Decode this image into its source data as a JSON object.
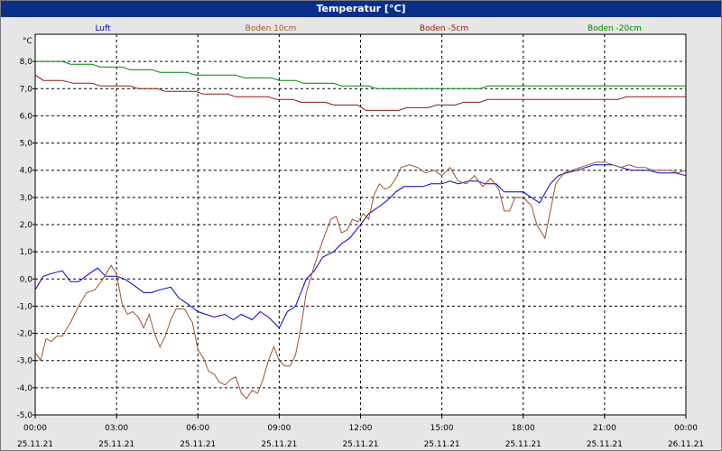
{
  "window": {
    "title": "Temperatur [°C]"
  },
  "chart_data": {
    "type": "line",
    "title": "Temperatur [°C]",
    "ylabel": "°C",
    "ylim": [
      -5,
      9
    ],
    "ytick_values": [
      -5,
      -4,
      -3,
      -2,
      -1,
      0,
      1,
      2,
      3,
      4,
      5,
      6,
      7,
      8
    ],
    "ytick_labels": [
      "-5,0",
      "-4,0",
      "-3,0",
      "-2,0",
      "-1,0",
      "0,0",
      "1,0",
      "2,0",
      "3,0",
      "4,0",
      "5,0",
      "6,0",
      "7,0",
      "8,0"
    ],
    "xlim": [
      0,
      24
    ],
    "xtick_hours": [
      0,
      3,
      6,
      9,
      12,
      15,
      18,
      21,
      24
    ],
    "xtick_times": [
      "00:00",
      "03:00",
      "06:00",
      "09:00",
      "12:00",
      "15:00",
      "18:00",
      "21:00",
      "00:00"
    ],
    "xtick_dates": [
      "25.11.21",
      "25.11.21",
      "25.11.21",
      "25.11.21",
      "25.11.21",
      "25.11.21",
      "25.11.21",
      "25.11.21",
      "26.11.21"
    ],
    "grid": true,
    "legend_position": "top",
    "series": [
      {
        "name": "Luft",
        "color": "#0000cc",
        "points": [
          [
            0,
            -0.4
          ],
          [
            0.3,
            0.1
          ],
          [
            0.6,
            0.2
          ],
          [
            1.0,
            0.3
          ],
          [
            1.3,
            -0.1
          ],
          [
            1.6,
            -0.1
          ],
          [
            2.0,
            0.2
          ],
          [
            2.3,
            0.4
          ],
          [
            2.6,
            0.1
          ],
          [
            3.0,
            0.1
          ],
          [
            3.3,
            0.0
          ],
          [
            3.6,
            -0.2
          ],
          [
            4.0,
            -0.5
          ],
          [
            4.3,
            -0.5
          ],
          [
            4.6,
            -0.4
          ],
          [
            5.0,
            -0.3
          ],
          [
            5.3,
            -0.7
          ],
          [
            5.6,
            -0.9
          ],
          [
            6.0,
            -1.2
          ],
          [
            6.3,
            -1.3
          ],
          [
            6.6,
            -1.4
          ],
          [
            7.0,
            -1.3
          ],
          [
            7.3,
            -1.5
          ],
          [
            7.6,
            -1.3
          ],
          [
            8.0,
            -1.5
          ],
          [
            8.3,
            -1.2
          ],
          [
            8.6,
            -1.4
          ],
          [
            9.0,
            -1.8
          ],
          [
            9.3,
            -1.2
          ],
          [
            9.6,
            -1.0
          ],
          [
            10.0,
            0.0
          ],
          [
            10.3,
            0.3
          ],
          [
            10.6,
            0.8
          ],
          [
            11.0,
            1.0
          ],
          [
            11.3,
            1.3
          ],
          [
            11.6,
            1.5
          ],
          [
            12.0,
            2.0
          ],
          [
            12.3,
            2.4
          ],
          [
            12.6,
            2.6
          ],
          [
            13.0,
            2.9
          ],
          [
            13.3,
            3.2
          ],
          [
            13.6,
            3.4
          ],
          [
            14.0,
            3.4
          ],
          [
            14.3,
            3.4
          ],
          [
            14.6,
            3.5
          ],
          [
            15.0,
            3.5
          ],
          [
            15.3,
            3.6
          ],
          [
            15.6,
            3.5
          ],
          [
            16.0,
            3.6
          ],
          [
            16.3,
            3.6
          ],
          [
            16.6,
            3.5
          ],
          [
            17.0,
            3.5
          ],
          [
            17.3,
            3.2
          ],
          [
            17.6,
            3.2
          ],
          [
            18.0,
            3.2
          ],
          [
            18.3,
            3.0
          ],
          [
            18.6,
            2.8
          ],
          [
            19.0,
            3.5
          ],
          [
            19.3,
            3.8
          ],
          [
            19.6,
            3.9
          ],
          [
            20.0,
            4.0
          ],
          [
            20.3,
            4.1
          ],
          [
            20.6,
            4.2
          ],
          [
            21.0,
            4.2
          ],
          [
            21.3,
            4.2
          ],
          [
            21.6,
            4.1
          ],
          [
            22.0,
            4.0
          ],
          [
            22.3,
            4.0
          ],
          [
            22.6,
            4.0
          ],
          [
            23.0,
            3.9
          ],
          [
            23.3,
            3.9
          ],
          [
            23.6,
            3.9
          ],
          [
            24.0,
            3.8
          ]
        ]
      },
      {
        "name": "Boden 10cm",
        "color": "#a0522d",
        "points": [
          [
            0,
            -2.7
          ],
          [
            0.2,
            -3.0
          ],
          [
            0.4,
            -2.2
          ],
          [
            0.6,
            -2.3
          ],
          [
            0.8,
            -2.1
          ],
          [
            1.0,
            -2.1
          ],
          [
            1.3,
            -1.6
          ],
          [
            1.6,
            -1.0
          ],
          [
            1.9,
            -0.5
          ],
          [
            2.2,
            -0.4
          ],
          [
            2.5,
            0.0
          ],
          [
            2.8,
            0.5
          ],
          [
            3.0,
            0.2
          ],
          [
            3.2,
            -0.9
          ],
          [
            3.4,
            -1.3
          ],
          [
            3.6,
            -1.2
          ],
          [
            3.8,
            -1.4
          ],
          [
            4.0,
            -1.8
          ],
          [
            4.2,
            -1.3
          ],
          [
            4.4,
            -2.0
          ],
          [
            4.6,
            -2.5
          ],
          [
            4.8,
            -2.1
          ],
          [
            5.0,
            -1.5
          ],
          [
            5.2,
            -1.1
          ],
          [
            5.5,
            -1.1
          ],
          [
            5.8,
            -1.6
          ],
          [
            6.0,
            -2.6
          ],
          [
            6.2,
            -2.9
          ],
          [
            6.4,
            -3.4
          ],
          [
            6.6,
            -3.5
          ],
          [
            6.8,
            -3.8
          ],
          [
            7.0,
            -3.9
          ],
          [
            7.2,
            -3.7
          ],
          [
            7.4,
            -3.6
          ],
          [
            7.6,
            -4.2
          ],
          [
            7.8,
            -4.4
          ],
          [
            8.0,
            -4.1
          ],
          [
            8.2,
            -4.2
          ],
          [
            8.4,
            -3.7
          ],
          [
            8.6,
            -3.0
          ],
          [
            8.8,
            -2.5
          ],
          [
            9.0,
            -3.0
          ],
          [
            9.2,
            -3.2
          ],
          [
            9.4,
            -3.2
          ],
          [
            9.6,
            -2.8
          ],
          [
            9.8,
            -1.8
          ],
          [
            10.0,
            -0.5
          ],
          [
            10.3,
            0.5
          ],
          [
            10.6,
            1.4
          ],
          [
            10.9,
            2.2
          ],
          [
            11.1,
            2.3
          ],
          [
            11.3,
            1.7
          ],
          [
            11.5,
            1.8
          ],
          [
            11.7,
            2.2
          ],
          [
            11.9,
            2.1
          ],
          [
            12.1,
            2.4
          ],
          [
            12.3,
            2.2
          ],
          [
            12.5,
            3.1
          ],
          [
            12.7,
            3.5
          ],
          [
            12.9,
            3.3
          ],
          [
            13.1,
            3.4
          ],
          [
            13.3,
            3.7
          ],
          [
            13.5,
            4.1
          ],
          [
            13.8,
            4.2
          ],
          [
            14.1,
            4.1
          ],
          [
            14.4,
            3.9
          ],
          [
            14.7,
            4.0
          ],
          [
            15.0,
            3.8
          ],
          [
            15.3,
            4.1
          ],
          [
            15.6,
            3.6
          ],
          [
            15.9,
            3.5
          ],
          [
            16.2,
            3.8
          ],
          [
            16.5,
            3.4
          ],
          [
            16.8,
            3.7
          ],
          [
            17.1,
            3.3
          ],
          [
            17.3,
            2.5
          ],
          [
            17.5,
            2.5
          ],
          [
            17.7,
            3.0
          ],
          [
            18.0,
            3.0
          ],
          [
            18.3,
            2.7
          ],
          [
            18.5,
            2.0
          ],
          [
            18.8,
            1.5
          ],
          [
            19.0,
            2.5
          ],
          [
            19.2,
            3.5
          ],
          [
            19.5,
            3.9
          ],
          [
            19.8,
            4.0
          ],
          [
            20.1,
            4.1
          ],
          [
            20.4,
            4.2
          ],
          [
            20.7,
            4.3
          ],
          [
            21.0,
            4.3
          ],
          [
            21.3,
            4.2
          ],
          [
            21.6,
            4.1
          ],
          [
            21.9,
            4.2
          ],
          [
            22.2,
            4.1
          ],
          [
            22.5,
            4.1
          ],
          [
            22.8,
            4.0
          ],
          [
            23.1,
            4.0
          ],
          [
            23.4,
            4.0
          ],
          [
            23.7,
            3.9
          ],
          [
            24.0,
            4.0
          ]
        ]
      },
      {
        "name": "Boden -5cm",
        "color": "#8b1a1a",
        "points": [
          [
            0,
            7.5
          ],
          [
            0.3,
            7.3
          ],
          [
            1.0,
            7.3
          ],
          [
            1.4,
            7.2
          ],
          [
            2.1,
            7.2
          ],
          [
            2.4,
            7.1
          ],
          [
            3.5,
            7.1
          ],
          [
            3.8,
            7.0
          ],
          [
            4.5,
            7.0
          ],
          [
            4.8,
            6.9
          ],
          [
            5.9,
            6.9
          ],
          [
            6.2,
            6.8
          ],
          [
            7.1,
            6.8
          ],
          [
            7.4,
            6.7
          ],
          [
            8.6,
            6.7
          ],
          [
            8.9,
            6.6
          ],
          [
            9.5,
            6.6
          ],
          [
            9.8,
            6.5
          ],
          [
            10.7,
            6.5
          ],
          [
            11.0,
            6.4
          ],
          [
            11.9,
            6.4
          ],
          [
            12.2,
            6.2
          ],
          [
            13.4,
            6.2
          ],
          [
            13.7,
            6.3
          ],
          [
            14.5,
            6.3
          ],
          [
            14.8,
            6.4
          ],
          [
            15.5,
            6.4
          ],
          [
            15.8,
            6.5
          ],
          [
            16.4,
            6.5
          ],
          [
            16.7,
            6.6
          ],
          [
            21.5,
            6.6
          ],
          [
            21.8,
            6.7
          ],
          [
            24.0,
            6.7
          ]
        ]
      },
      {
        "name": "Boden -20cm",
        "color": "#008000",
        "points": [
          [
            0,
            8.0
          ],
          [
            1.0,
            8.0
          ],
          [
            1.3,
            7.9
          ],
          [
            2.1,
            7.9
          ],
          [
            2.4,
            7.8
          ],
          [
            3.2,
            7.8
          ],
          [
            3.5,
            7.7
          ],
          [
            4.3,
            7.7
          ],
          [
            4.6,
            7.6
          ],
          [
            5.6,
            7.6
          ],
          [
            5.9,
            7.5
          ],
          [
            7.4,
            7.5
          ],
          [
            7.7,
            7.4
          ],
          [
            8.7,
            7.4
          ],
          [
            9.0,
            7.3
          ],
          [
            9.6,
            7.3
          ],
          [
            9.9,
            7.2
          ],
          [
            11.0,
            7.2
          ],
          [
            11.3,
            7.1
          ],
          [
            12.3,
            7.1
          ],
          [
            12.6,
            7.0
          ],
          [
            16.4,
            7.0
          ],
          [
            16.7,
            7.1
          ],
          [
            24.0,
            7.1
          ]
        ]
      }
    ]
  }
}
